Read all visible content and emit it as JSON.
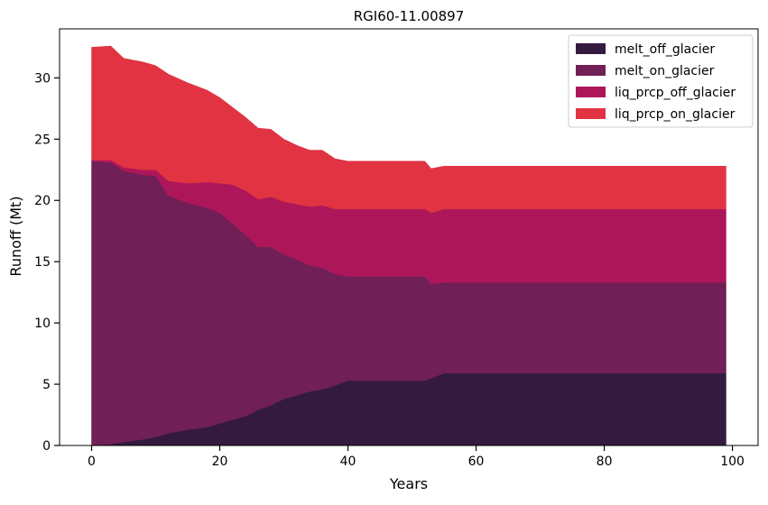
{
  "chart_data": {
    "type": "area",
    "stacked": true,
    "title": "RGI60-11.00897",
    "xlabel": "Years",
    "ylabel": "Runoff (Mt)",
    "xlim": [
      -5,
      104
    ],
    "ylim": [
      0,
      34
    ],
    "xticks": [
      0,
      20,
      40,
      60,
      80,
      100
    ],
    "yticks": [
      0,
      5,
      10,
      15,
      20,
      25,
      30
    ],
    "xtick_labels": [
      "0",
      "20",
      "40",
      "60",
      "80",
      "100"
    ],
    "ytick_labels": [
      "0",
      "5",
      "10",
      "15",
      "20",
      "25",
      "30"
    ],
    "grid": false,
    "legend_position": "top-right",
    "x": [
      0,
      3,
      5,
      8,
      10,
      12,
      15,
      18,
      20,
      22,
      24,
      26,
      28,
      30,
      32,
      34,
      36,
      38,
      40,
      45,
      50,
      52,
      53,
      55,
      60,
      70,
      80,
      90,
      99
    ],
    "series": [
      {
        "name": "melt_off_glacier",
        "color": "#351a3f",
        "values": [
          0,
          0.1,
          0.3,
          0.5,
          0.7,
          1.0,
          1.3,
          1.5,
          1.8,
          2.1,
          2.4,
          2.9,
          3.3,
          3.8,
          4.1,
          4.4,
          4.6,
          4.9,
          5.3,
          5.3,
          5.3,
          5.3,
          5.5,
          5.9,
          5.9,
          5.9,
          5.9,
          5.9,
          5.9
        ]
      },
      {
        "name": "melt_on_glacier",
        "color": "#701f57",
        "values": [
          23.2,
          23.0,
          22.1,
          21.6,
          21.3,
          19.4,
          18.5,
          17.9,
          17.2,
          16.0,
          14.8,
          13.3,
          12.9,
          11.8,
          11.1,
          10.3,
          9.9,
          9.1,
          8.5,
          8.5,
          8.5,
          8.5,
          7.7,
          7.4,
          7.4,
          7.4,
          7.4,
          7.4,
          7.4
        ]
      },
      {
        "name": "liq_prcp_off_glacier",
        "color": "#ad1759",
        "values": [
          0.1,
          0.2,
          0.3,
          0.4,
          0.5,
          1.2,
          1.6,
          2.1,
          2.4,
          3.2,
          3.6,
          3.9,
          4.1,
          4.3,
          4.5,
          4.8,
          5.1,
          5.3,
          5.5,
          5.5,
          5.5,
          5.5,
          5.8,
          6.0,
          6.0,
          6.0,
          6.0,
          6.0,
          6.0
        ]
      },
      {
        "name": "liq_prcp_on_glacier",
        "color": "#e13342",
        "values": [
          9.2,
          9.3,
          8.9,
          8.8,
          8.5,
          8.7,
          8.2,
          7.5,
          7.0,
          6.3,
          6.0,
          5.8,
          5.5,
          5.1,
          4.8,
          4.6,
          4.5,
          4.1,
          3.9,
          3.9,
          3.9,
          3.9,
          3.6,
          3.5,
          3.5,
          3.5,
          3.5,
          3.5,
          3.5
        ]
      }
    ]
  }
}
